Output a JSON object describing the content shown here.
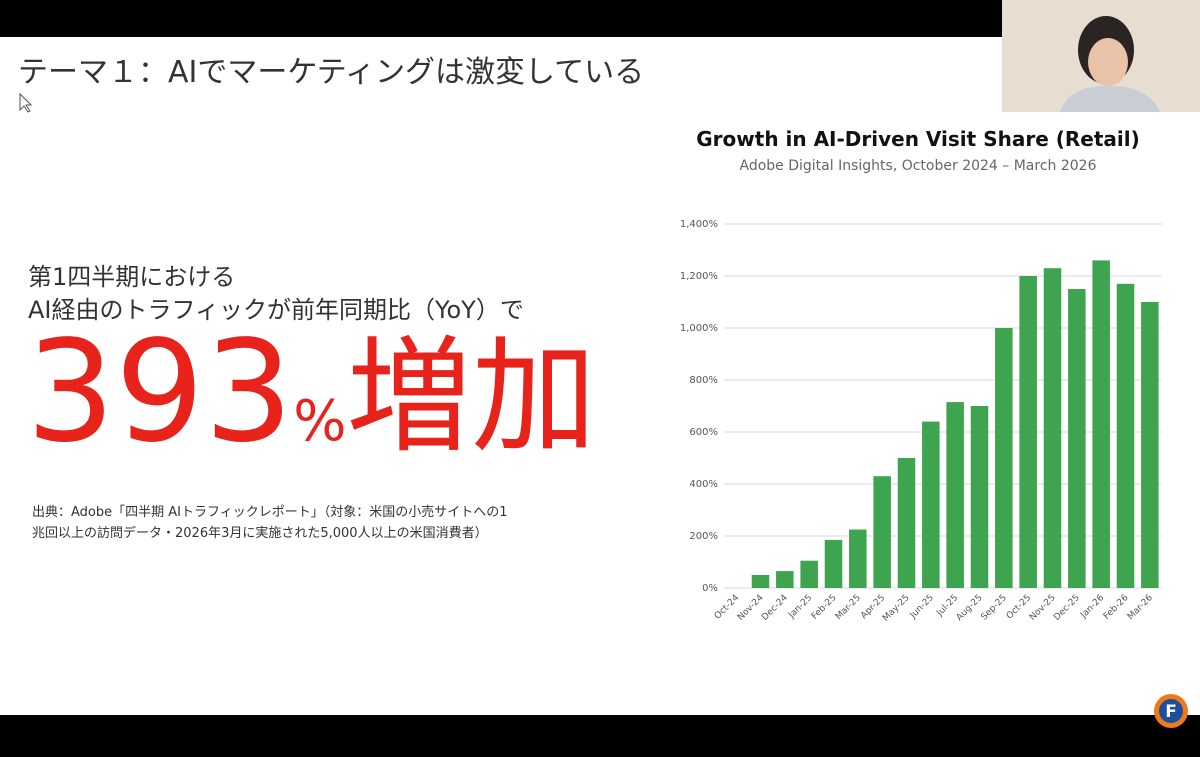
{
  "slide": {
    "title": "テーマ１：AIでマーケティングは激変している",
    "lead": [
      "第1四半期における",
      "AI経由のトラフィックが前年同期比（YoY）で"
    ],
    "highlight": {
      "number": "393",
      "unit": "%",
      "word": "増加"
    },
    "source": [
      "出典：Adobe「四半期 AIトラフィックレポート」（対象：米国の小売サイトへの1",
      "兆回以上の訪問データ・2026年3月に実施された5,000人以上の米国消費者）"
    ],
    "logo": "F"
  },
  "chart_data": {
    "type": "bar",
    "title": "Growth in AI-Driven Visit Share (Retail)",
    "subtitle": "Adobe Digital Insights, October 2024 – March 2026",
    "categories": [
      "Oct-24",
      "Nov-24",
      "Dec-24",
      "Jan-25",
      "Feb-25",
      "Mar-25",
      "Apr-25",
      "May-25",
      "Jun-25",
      "Jul-25",
      "Aug-25",
      "Sep-25",
      "Oct-25",
      "Nov-25",
      "Dec-25",
      "Jan-26",
      "Feb-26",
      "Mar-26"
    ],
    "values": [
      0,
      50,
      65,
      105,
      185,
      225,
      430,
      500,
      640,
      715,
      700,
      1000,
      1200,
      1230,
      1150,
      1260,
      1170,
      1100
    ],
    "color": "#3fa44f",
    "ylim": [
      0,
      1400
    ],
    "yticks": [
      {
        "value": 0,
        "label": "0%"
      },
      {
        "value": 200,
        "label": "200%"
      },
      {
        "value": 400,
        "label": "400%"
      },
      {
        "value": 600,
        "label": "600%"
      },
      {
        "value": 800,
        "label": "800%"
      },
      {
        "value": 1000,
        "label": "1,000%"
      },
      {
        "value": 1200,
        "label": "1,200%"
      },
      {
        "value": 1400,
        "label": "1,400%"
      }
    ],
    "grid": true
  }
}
